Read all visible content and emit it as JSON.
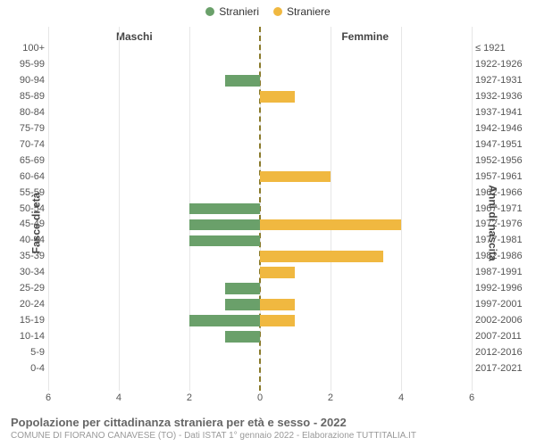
{
  "legend": {
    "series_m": {
      "label": "Stranieri",
      "color": "#6aa06a"
    },
    "series_f": {
      "label": "Straniere",
      "color": "#f0b840"
    }
  },
  "side_titles": {
    "left": "Maschi",
    "right": "Femmine"
  },
  "axis_titles": {
    "left": "Fasce di età",
    "right": "Anni di nascita"
  },
  "x_axis": {
    "max": 6,
    "ticks": [
      6,
      4,
      2,
      0,
      2,
      4,
      6
    ]
  },
  "grid_color": "#e6e6e6",
  "centerline_color": "#8a7a2a",
  "bar_colors": {
    "m": "#6aa06a",
    "f": "#f0b840"
  },
  "background_color": "#ffffff",
  "rows": [
    {
      "age": "100+",
      "birth": "≤ 1921",
      "m": 0,
      "f": 0
    },
    {
      "age": "95-99",
      "birth": "1922-1926",
      "m": 0,
      "f": 0
    },
    {
      "age": "90-94",
      "birth": "1927-1931",
      "m": 1,
      "f": 0
    },
    {
      "age": "85-89",
      "birth": "1932-1936",
      "m": 0,
      "f": 1
    },
    {
      "age": "80-84",
      "birth": "1937-1941",
      "m": 0,
      "f": 0
    },
    {
      "age": "75-79",
      "birth": "1942-1946",
      "m": 0,
      "f": 0
    },
    {
      "age": "70-74",
      "birth": "1947-1951",
      "m": 0,
      "f": 0
    },
    {
      "age": "65-69",
      "birth": "1952-1956",
      "m": 0,
      "f": 0
    },
    {
      "age": "60-64",
      "birth": "1957-1961",
      "m": 0,
      "f": 2
    },
    {
      "age": "55-59",
      "birth": "1962-1966",
      "m": 0,
      "f": 0
    },
    {
      "age": "50-54",
      "birth": "1967-1971",
      "m": 2,
      "f": 0
    },
    {
      "age": "45-49",
      "birth": "1972-1976",
      "m": 2,
      "f": 4
    },
    {
      "age": "40-44",
      "birth": "1977-1981",
      "m": 2,
      "f": 0
    },
    {
      "age": "35-39",
      "birth": "1982-1986",
      "m": 0,
      "f": 3.5
    },
    {
      "age": "30-34",
      "birth": "1987-1991",
      "m": 0,
      "f": 1
    },
    {
      "age": "25-29",
      "birth": "1992-1996",
      "m": 1,
      "f": 0
    },
    {
      "age": "20-24",
      "birth": "1997-2001",
      "m": 1,
      "f": 1
    },
    {
      "age": "15-19",
      "birth": "2002-2006",
      "m": 2,
      "f": 1
    },
    {
      "age": "10-14",
      "birth": "2007-2011",
      "m": 1,
      "f": 0
    },
    {
      "age": "5-9",
      "birth": "2012-2016",
      "m": 0,
      "f": 0
    },
    {
      "age": "0-4",
      "birth": "2017-2021",
      "m": 0,
      "f": 0
    }
  ],
  "footer": {
    "title": "Popolazione per cittadinanza straniera per età e sesso - 2022",
    "sub": "COMUNE DI FIORANO CANAVESE (TO) - Dati ISTAT 1° gennaio 2022 - Elaborazione TUTTITALIA.IT"
  }
}
